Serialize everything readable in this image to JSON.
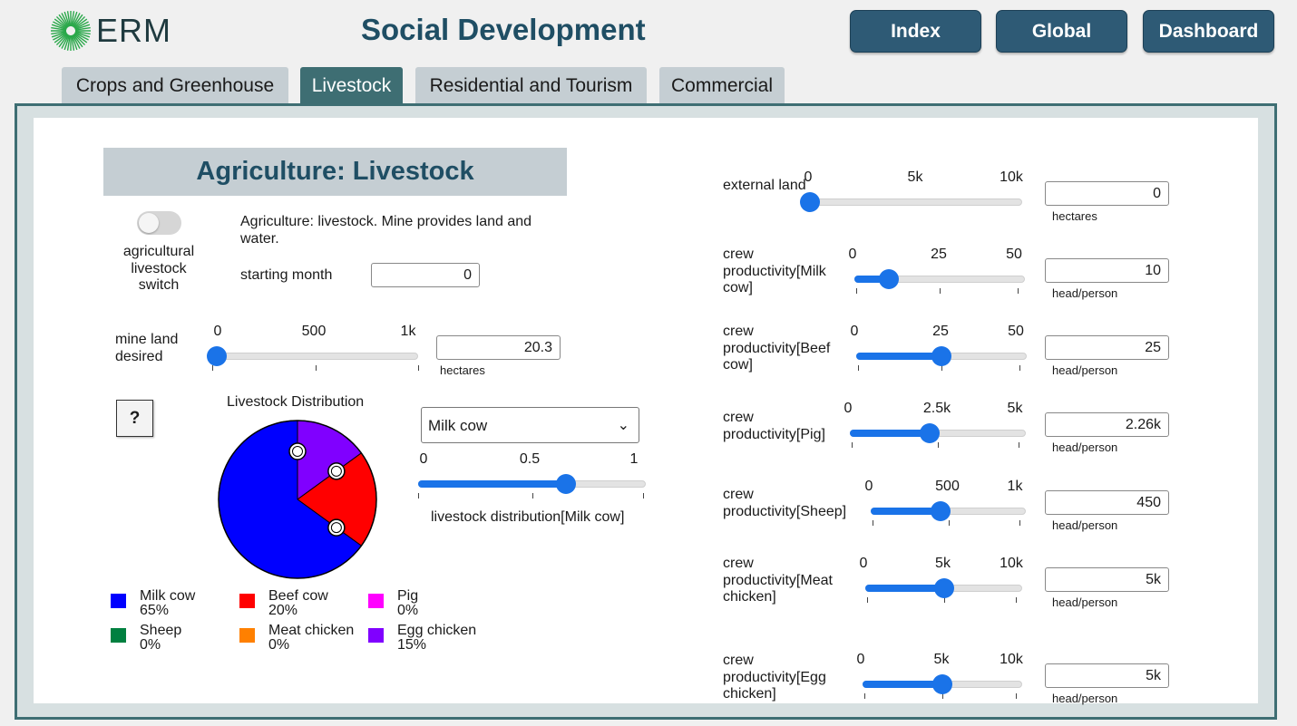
{
  "header": {
    "logo_text": "ERM",
    "title": "Social Development",
    "nav": [
      {
        "label": "Index"
      },
      {
        "label": "Global"
      },
      {
        "label": "Dashboard"
      }
    ]
  },
  "tabs": [
    {
      "label": "Crops and Greenhouse",
      "active": false
    },
    {
      "label": "Livestock",
      "active": true
    },
    {
      "label": "Residential and Tourism",
      "active": false
    },
    {
      "label": "Commercial",
      "active": false
    }
  ],
  "section": {
    "title": "Agriculture: Livestock"
  },
  "left": {
    "switch_label": "agricultural livestock switch",
    "switch_on": false,
    "description": "Agriculture: livestock.  Mine provides land and water.",
    "starting_month_label": "starting month",
    "starting_month_value": "0",
    "mine_land": {
      "label": "mine land desired",
      "ticks": [
        "0",
        "500",
        "1k"
      ],
      "value": "20.3",
      "unit": "hectares",
      "fraction": 0.02
    },
    "help_label": "?"
  },
  "chart_title": "Livestock Distribution",
  "chart_data": {
    "type": "pie",
    "title": "Livestock Distribution",
    "slices": [
      {
        "name": "Milk cow",
        "value": 65,
        "color": "#0000ff"
      },
      {
        "name": "Beef cow",
        "value": 20,
        "color": "#ff0000"
      },
      {
        "name": "Egg chicken",
        "value": 15,
        "color": "#8000ff"
      }
    ]
  },
  "legend": [
    {
      "name": "Milk cow",
      "pct": "65%",
      "color": "#0000ff"
    },
    {
      "name": "Beef cow",
      "pct": "20%",
      "color": "#ff0000"
    },
    {
      "name": "Pig",
      "pct": "0%",
      "color": "#ff00ff"
    },
    {
      "name": "Sheep",
      "pct": "0%",
      "color": "#008040"
    },
    {
      "name": "Meat chicken",
      "pct": "0%",
      "color": "#ff8000"
    },
    {
      "name": "Egg chicken",
      "pct": "15%",
      "color": "#8000ff"
    }
  ],
  "distribution": {
    "selected": "Milk cow",
    "ticks": [
      "0",
      "0.5",
      "1"
    ],
    "fraction": 0.65,
    "label": "livestock distribution[Milk cow]"
  },
  "right_sliders": [
    {
      "label": "external land",
      "ticks": [
        "0",
        "5k",
        "10k"
      ],
      "fraction": 0.0,
      "value": "0",
      "unit": "hectares"
    },
    {
      "label": "crew productivity[Milk cow]",
      "ticks": [
        "0",
        "25",
        "50"
      ],
      "fraction": 0.2,
      "value": "10",
      "unit": "head/person"
    },
    {
      "label": "crew productivity[Beef cow]",
      "ticks": [
        "0",
        "25",
        "50"
      ],
      "fraction": 0.5,
      "value": "25",
      "unit": "head/person"
    },
    {
      "label": "crew productivity[Pig]",
      "ticks": [
        "0",
        "2.5k",
        "5k"
      ],
      "fraction": 0.452,
      "value": "2.26k",
      "unit": "head/person"
    },
    {
      "label": "crew productivity[Sheep]",
      "ticks": [
        "0",
        "500",
        "1k"
      ],
      "fraction": 0.45,
      "value": "450",
      "unit": "head/person"
    },
    {
      "label": "crew productivity[Meat chicken]",
      "ticks": [
        "0",
        "5k",
        "10k"
      ],
      "fraction": 0.5,
      "value": "5k",
      "unit": "head/person"
    },
    {
      "label": "crew productivity[Egg chicken]",
      "ticks": [
        "0",
        "5k",
        "10k"
      ],
      "fraction": 0.5,
      "value": "5k",
      "unit": "head/person"
    }
  ]
}
